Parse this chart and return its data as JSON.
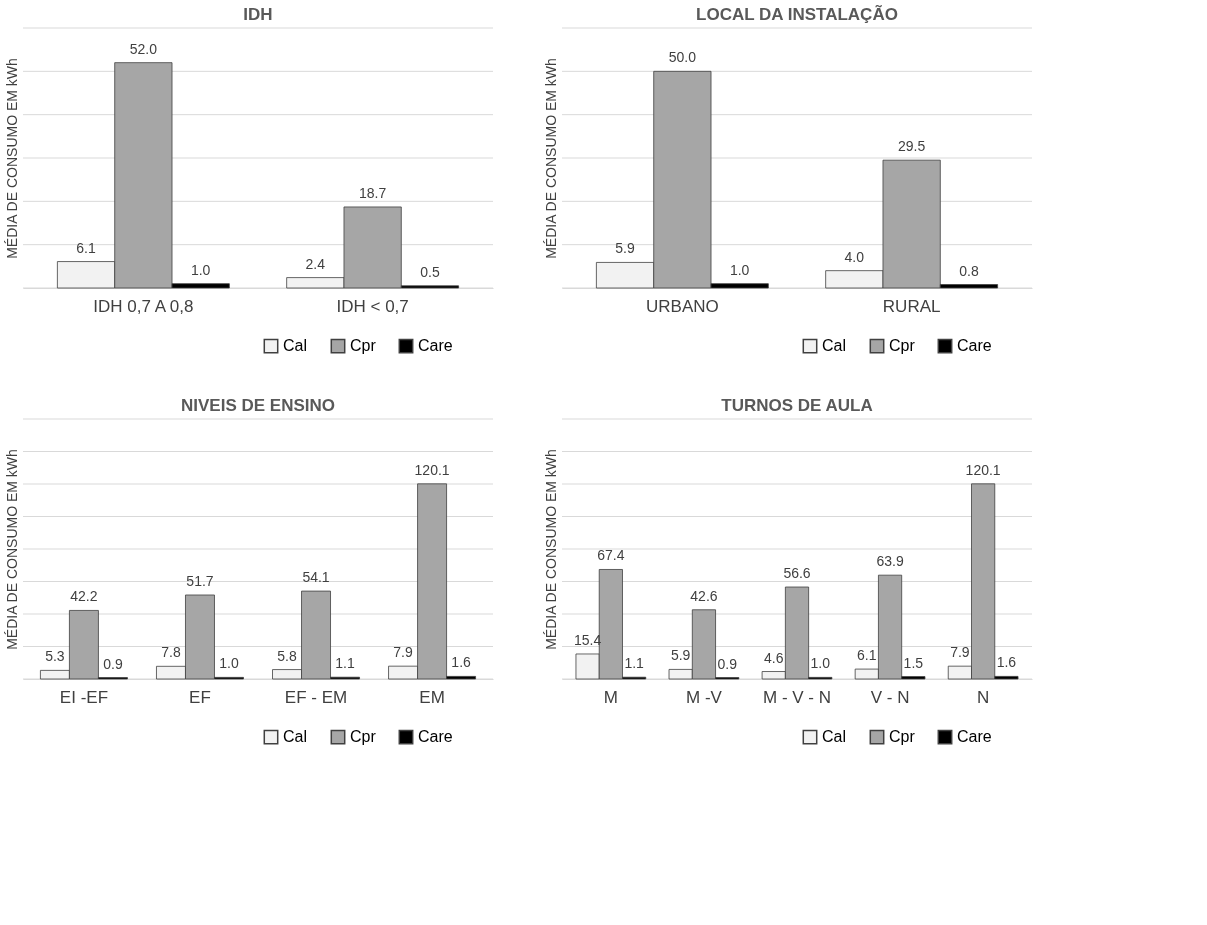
{
  "chart_data": [
    {
      "type": "bar",
      "title": "IDH",
      "ylabel": "MÉDIA DE CONSUMO EM kWh",
      "categories": [
        "IDH 0,7 A 0,8",
        "IDH < 0,7"
      ],
      "series": [
        {
          "name": "Cal",
          "color": "#f2f2f2",
          "values": [
            6.1,
            2.4
          ],
          "value_labels": [
            "6.1",
            "2.4"
          ]
        },
        {
          "name": "Cpr",
          "color": "#a6a6a6",
          "values": [
            52.0,
            18.7
          ],
          "value_labels": [
            "52.0",
            "18.7"
          ]
        },
        {
          "name": "Care",
          "color": "#000000",
          "values": [
            1.0,
            0.5
          ],
          "value_labels": [
            "1.0",
            "0.5"
          ]
        }
      ],
      "ylim": [
        0,
        60
      ],
      "yticks": [
        {
          "value": 0,
          "label": null
        },
        {
          "value": 10,
          "label": null
        },
        {
          "value": 20,
          "label": null
        },
        {
          "value": 30,
          "label": null
        },
        {
          "value": 40,
          "label": null
        },
        {
          "value": 50,
          "label": null
        },
        {
          "value": 60,
          "label": null
        }
      ],
      "grid": "y",
      "tick_labels": "x",
      "legend": "bottom right"
    },
    {
      "type": "bar",
      "title": "LOCAL DA INSTALAÇÃO",
      "ylabel": "MÉDIA DE CONSUMO EM kWh",
      "categories": [
        "URBANO",
        "RURAL"
      ],
      "series": [
        {
          "name": "Cal",
          "color": "#f2f2f2",
          "values": [
            5.9,
            4.0
          ],
          "value_labels": [
            "5.9",
            "4.0"
          ]
        },
        {
          "name": "Cpr",
          "color": "#a6a6a6",
          "values": [
            50.0,
            29.5
          ],
          "value_labels": [
            "50.0",
            "29.5"
          ]
        },
        {
          "name": "Care",
          "color": "#000000",
          "values": [
            1.0,
            0.8
          ],
          "value_labels": [
            "1.0",
            "0.8"
          ]
        }
      ],
      "ylim": [
        0,
        60
      ],
      "yticks": [
        {
          "value": 0,
          "label": null
        },
        {
          "value": 10,
          "label": null
        },
        {
          "value": 20,
          "label": null
        },
        {
          "value": 30,
          "label": null
        },
        {
          "value": 40,
          "label": null
        },
        {
          "value": 50,
          "label": null
        },
        {
          "value": 60,
          "label": null
        }
      ],
      "grid": "y",
      "tick_labels": "x",
      "legend": "bottom right"
    },
    {
      "type": "bar",
      "title": "NIVEIS DE ENSINO",
      "ylabel": "MÉDIA DE CONSUMO EM kWh",
      "categories": [
        "EI -EF",
        "EF",
        "EF - EM",
        "EM"
      ],
      "series": [
        {
          "name": "Cal",
          "color": "#f2f2f2",
          "values": [
            5.3,
            7.8,
            5.8,
            7.9
          ],
          "value_labels": [
            "5.3",
            "7.8",
            "5.8",
            "7.9"
          ]
        },
        {
          "name": "Cpr",
          "color": "#a6a6a6",
          "values": [
            42.2,
            51.7,
            54.1,
            120.1
          ],
          "value_labels": [
            "42.2",
            "51.7",
            "54.1",
            "120.1"
          ]
        },
        {
          "name": "Care",
          "color": "#000000",
          "values": [
            0.9,
            1.0,
            1.1,
            1.6
          ],
          "value_labels": [
            "0.9",
            "1.0",
            "1.1",
            "1.6"
          ]
        }
      ],
      "ylim": [
        0,
        160
      ],
      "yticks": [
        {
          "value": 0,
          "label": null
        },
        {
          "value": 20,
          "label": null
        },
        {
          "value": 40,
          "label": null
        },
        {
          "value": 60,
          "label": null
        },
        {
          "value": 80,
          "label": null
        },
        {
          "value": 100,
          "label": null
        },
        {
          "value": 120,
          "label": null
        },
        {
          "value": 140,
          "label": null
        },
        {
          "value": 160,
          "label": null
        }
      ],
      "grid": "y",
      "tick_labels": "x",
      "legend": "bottom right"
    },
    {
      "type": "bar",
      "title": "TURNOS DE AULA",
      "ylabel": "MÉDIA DE CONSUMO EM kWh",
      "categories": [
        "M",
        "M -V",
        "M - V - N",
        "V - N",
        "N"
      ],
      "series": [
        {
          "name": "Cal",
          "color": "#f2f2f2",
          "values": [
            15.4,
            5.9,
            4.6,
            6.1,
            7.9
          ],
          "value_labels": [
            "15.4",
            "5.9",
            "4.6",
            "6.1",
            "7.9"
          ]
        },
        {
          "name": "Cpr",
          "color": "#a6a6a6",
          "values": [
            67.4,
            42.6,
            56.6,
            63.9,
            120.1
          ],
          "value_labels": [
            "67.4",
            "42.6",
            "56.6",
            "63.9",
            "120.1"
          ]
        },
        {
          "name": "Care",
          "color": "#000000",
          "values": [
            1.1,
            0.9,
            1.0,
            1.5,
            1.6
          ],
          "value_labels": [
            "1.1",
            "0.9",
            "1.0",
            "1.5",
            "1.6"
          ]
        }
      ],
      "ylim": [
        0,
        160
      ],
      "yticks": [
        {
          "value": 0,
          "label": null
        },
        {
          "value": 20,
          "label": null
        },
        {
          "value": 40,
          "label": null
        },
        {
          "value": 60,
          "label": null
        },
        {
          "value": 80,
          "label": null
        },
        {
          "value": 100,
          "label": null
        },
        {
          "value": 120,
          "label": null
        },
        {
          "value": 140,
          "label": null
        },
        {
          "value": 160,
          "label": null
        }
      ],
      "grid": "y",
      "tick_labels": "x",
      "legend": "bottom right"
    }
  ]
}
